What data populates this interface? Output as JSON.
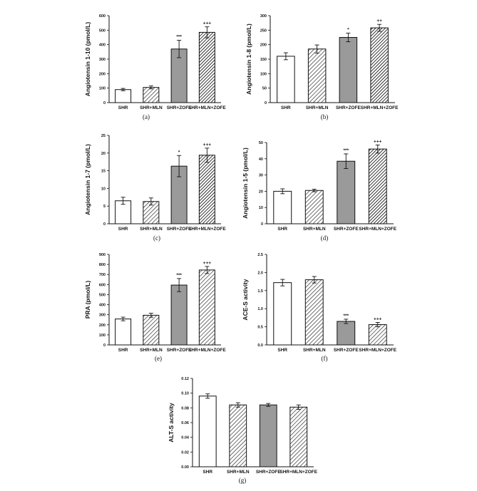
{
  "chart_data": [
    {
      "type": "bar",
      "panel_label": "(a)",
      "ylabel": "Angiotensin 1-10 (pmol/L)",
      "ylim": [
        0,
        600
      ],
      "yticks": [
        0,
        100,
        200,
        300,
        400,
        500,
        600
      ],
      "categories": [
        "SHR",
        "SHR+MLN",
        "SHR+ZOFE",
        "SHR+MLN+ZOFE"
      ],
      "values": [
        90,
        105,
        370,
        485
      ],
      "errors": [
        8,
        10,
        60,
        38
      ],
      "significance": [
        "",
        "",
        "***",
        "+++"
      ],
      "fills": [
        "white",
        "hatch",
        "gray",
        "hatch-dark"
      ]
    },
    {
      "type": "bar",
      "panel_label": "(b)",
      "ylabel": "Angiotensin 1-8 (pmol/L)",
      "ylim": [
        0,
        300
      ],
      "yticks": [
        0,
        50,
        100,
        150,
        200,
        250,
        300
      ],
      "categories": [
        "SHR",
        "SHR+MLN",
        "SHR+ZOFE",
        "SHR+MLN+ZOFE"
      ],
      "values": [
        160,
        185,
        225,
        258
      ],
      "errors": [
        12,
        14,
        15,
        12
      ],
      "significance": [
        "",
        "",
        "*",
        "++"
      ],
      "fills": [
        "white",
        "hatch",
        "gray",
        "hatch-dark"
      ]
    },
    {
      "type": "bar",
      "panel_label": "(c)",
      "ylabel": "Angiotensin 1-7 (pmol/L)",
      "ylim": [
        0,
        25
      ],
      "yticks": [
        0,
        5,
        10,
        15,
        20,
        25
      ],
      "categories": [
        "SHR",
        "SHR+MLN",
        "SHR+ZOFE",
        "SHR+MLN+ZOFE"
      ],
      "values": [
        6.5,
        6.3,
        16.3,
        19.4
      ],
      "errors": [
        1.0,
        1.0,
        3.0,
        2.0
      ],
      "significance": [
        "",
        "",
        "*",
        "+++"
      ],
      "fills": [
        "white",
        "hatch",
        "gray",
        "hatch-dark"
      ]
    },
    {
      "type": "bar",
      "panel_label": "(d)",
      "ylabel": "Angiotensin 1-5 (pmol/L)",
      "ylim": [
        0,
        50
      ],
      "yticks": [
        0,
        10,
        20,
        30,
        40,
        50
      ],
      "categories": [
        "SHR",
        "SHR+MLN",
        "SHR+ZOFE",
        "SHR+MLN+ZOFE"
      ],
      "values": [
        20,
        20.5,
        38.5,
        46
      ],
      "errors": [
        1.5,
        0.8,
        4.5,
        2.5
      ],
      "significance": [
        "",
        "",
        "***",
        "+++"
      ],
      "fills": [
        "white",
        "hatch",
        "gray",
        "hatch-dark"
      ]
    },
    {
      "type": "bar",
      "panel_label": "(e)",
      "ylabel": "PRA (pmol/L)",
      "ylim": [
        0,
        900
      ],
      "yticks": [
        0,
        100,
        200,
        300,
        400,
        500,
        600,
        700,
        800,
        900
      ],
      "categories": [
        "SHR",
        "SHR+MLN",
        "SHR+ZOFE",
        "SHR+MLN+ZOFE"
      ],
      "values": [
        258,
        295,
        595,
        745
      ],
      "errors": [
        18,
        20,
        65,
        35
      ],
      "significance": [
        "",
        "",
        "***",
        "+++"
      ],
      "fills": [
        "white",
        "hatch",
        "gray",
        "hatch"
      ]
    },
    {
      "type": "bar",
      "panel_label": "(f)",
      "ylabel": "ACE-S activity",
      "ylim": [
        0,
        2.5
      ],
      "yticks": [
        "0.0",
        "0.5",
        "1.0",
        "1.5",
        "2.0",
        "2.5"
      ],
      "categories": [
        "SHR",
        "SHR+MLN",
        "SHR+ZOFE",
        "SHR+MLN+ZOFE"
      ],
      "values": [
        1.72,
        1.8,
        0.65,
        0.56
      ],
      "errors": [
        0.09,
        0.09,
        0.06,
        0.06
      ],
      "significance": [
        "",
        "",
        "***",
        "+++"
      ],
      "fills": [
        "white",
        "hatch",
        "gray",
        "hatch"
      ]
    },
    {
      "type": "bar",
      "panel_label": "(g)",
      "ylabel": "ALT-S activity",
      "ylim": [
        0,
        0.12
      ],
      "yticks": [
        "0.00",
        "0.02",
        "0.04",
        "0.06",
        "0.08",
        "0.10",
        "0.12"
      ],
      "categories": [
        "SHR",
        "SHR+MLN",
        "SHR+ZOFE",
        "SHR+MLN+ZOFE"
      ],
      "values": [
        0.096,
        0.084,
        0.084,
        0.081
      ],
      "errors": [
        0.003,
        0.003,
        0.002,
        0.003
      ],
      "significance": [
        "",
        "",
        "",
        ""
      ],
      "fills": [
        "white",
        "hatch",
        "gray",
        "hatch"
      ]
    }
  ]
}
